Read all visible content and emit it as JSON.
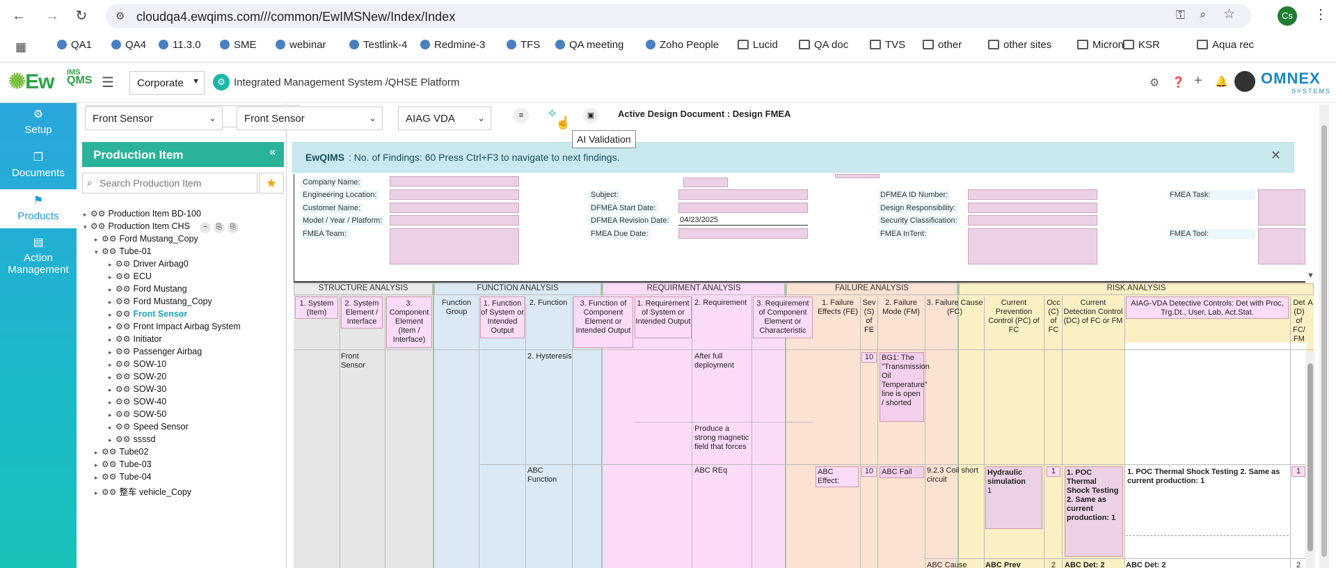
{
  "browser": {
    "url": "cloudqa4.ewqims.com///common/EwIMSNew/Index/Index",
    "profile_initials": "Cs",
    "bookmarks": [
      {
        "label": "QA1"
      },
      {
        "label": "QA4"
      },
      {
        "label": "11.3.0"
      },
      {
        "label": "SME"
      },
      {
        "label": "webinar"
      },
      {
        "label": "Testlink-4"
      },
      {
        "label": "Redmine-3"
      },
      {
        "label": "TFS"
      },
      {
        "label": "QA meeting"
      },
      {
        "label": "Zoho People"
      },
      {
        "label": "Lucid"
      },
      {
        "label": "QA doc"
      },
      {
        "label": "TVS"
      },
      {
        "label": "other"
      },
      {
        "label": "other sites"
      },
      {
        "label": "Micron"
      },
      {
        "label": "KSR"
      },
      {
        "label": "Aqua rec"
      }
    ]
  },
  "app": {
    "logo_main": "EwQIMS",
    "logo_sub_ims": "IMS",
    "logo_sub_qms": "QMS",
    "context_select": "Corporate",
    "platform_title": "Integrated Management System /QHSE Platform",
    "brand": "OMNEX",
    "brand_sub": "SYSTEMS"
  },
  "leftnav": [
    {
      "label": "Setup"
    },
    {
      "label": "Documents"
    },
    {
      "label": "Products"
    },
    {
      "label": "Action Management"
    }
  ],
  "toolbar": {
    "select1": "Front Sensor",
    "select2": "Front Sensor",
    "select3": "AIAG VDA",
    "active_doc": "Active Design Document : Design FMEA",
    "tooltip": "AI Validation"
  },
  "panel": {
    "title": "Production Item",
    "search_placeholder": "Search Production Item"
  },
  "tree": [
    {
      "label": "Production Item BD-100",
      "level": 0
    },
    {
      "label": "Production Item CHS",
      "level": 0
    },
    {
      "label": "Ford Mustang_Copy",
      "level": 1
    },
    {
      "label": "Tube-01",
      "level": 1
    },
    {
      "label": "Driver Airbag0",
      "level": 2
    },
    {
      "label": "ECU",
      "level": 2
    },
    {
      "label": "Ford Mustang",
      "level": 2
    },
    {
      "label": "Ford Mustang_Copy",
      "level": 2
    },
    {
      "label": "Front Sensor",
      "level": 2
    },
    {
      "label": "Front Impact Airbag System",
      "level": 2
    },
    {
      "label": "Initiator",
      "level": 2
    },
    {
      "label": "Passenger Airbag",
      "level": 2
    },
    {
      "label": "SOW-10",
      "level": 2
    },
    {
      "label": "SOW-20",
      "level": 2
    },
    {
      "label": "SOW-30",
      "level": 2
    },
    {
      "label": "SOW-40",
      "level": 2
    },
    {
      "label": "SOW-50",
      "level": 2
    },
    {
      "label": "Speed Sensor",
      "level": 2
    },
    {
      "label": "ssssd",
      "level": 2
    },
    {
      "label": "Tube02",
      "level": 1
    },
    {
      "label": "Tube-03",
      "level": 1
    },
    {
      "label": "Tube-04",
      "level": 1
    },
    {
      "label": "整车 vehicle_Copy",
      "level": 1
    }
  ],
  "banner": {
    "brand": "EwQIMS",
    "text": ": No. of Findings: 60 Press Ctrl+F3 to navigate to next findings."
  },
  "form": {
    "company_name": "Company Name:",
    "engineering_location": "Engineering Location:",
    "customer_name": "Customer Name:",
    "model_year": "Model / Year / Platform:",
    "fmea_team": "FMEA Team:",
    "subject": "Subject:",
    "start_date": "DFMEA Start Date:",
    "revision_date": "DFMEA Revision Date:",
    "revision_value": "04/23/2025",
    "due_date": "FMEA Due Date:",
    "id_number": "DFMEA ID Number:",
    "design_resp": "Design Responsibility:",
    "security": "Security Classification:",
    "intent": "FMEA InTent:",
    "task": "FMEA Task:",
    "tool": "FMEA Tool:"
  },
  "sections": [
    "STRUCTURE ANALYSIS",
    "FUNCTION ANALYSIS",
    "REQUIRMENT ANALYSIS",
    "FAILURE ANALYSIS",
    "RISK ANALYSIS"
  ],
  "columns": {
    "c1": "1. System (Item)",
    "c2": "2. System Element / Interface",
    "c3": "3. Component Element (Item / Interface)",
    "c4": "Function Group",
    "c5": "1. Function of System or Intended Output",
    "c6": "2. Function",
    "c7": "3. Function of Component Element or Intended Output",
    "c8": "1. Requirement of System or Intended Output",
    "c9": "2. Requirement",
    "c10": "3. Requirement of Component Element or Characteristic",
    "c11": "1. Failure Effects (FE)",
    "c12": "Sev (S) of FE",
    "c13": "2. Failure Mode (FM)",
    "c14": "3. Failure Cause (FC)",
    "c15": "Current Prevention Control (PC) of FC",
    "c16": "Occ (C) of FC",
    "c17": "Current Detection Control (DC) of FC or FM",
    "c18": "AIAG-VDA Detective Controls: Det with Proc, Trg.Dt., User, Lab, Act.Stat.",
    "c19": "Det (D) of FC/ FM",
    "c20": "A"
  },
  "rows": {
    "system_element": "Front Sensor",
    "function1": "2. Hysteresis",
    "req1": "After full deployment",
    "sev1": "10",
    "fm1": "BG1: The \"Transmission Oil Temperature\" line is open / shorted",
    "req2": "Produce a strong magnetic field that forces",
    "function2": "ABC Function",
    "req3": "ABC REq",
    "fe3": "ABC Effect:",
    "sev3": "10",
    "fm3": "ABC Fail",
    "fc3": "9.2.3 Coil short circuit",
    "pc3": "Hydraulic simulation",
    "pc3_occ": "1",
    "occ3": "1",
    "dc3": "1. POC Thermal Shock Testing 2. Same as current production: 1",
    "aiag3": "1. POC Thermal Shock Testing 2. Same as current production: 1",
    "det3": "1",
    "fc4": "ABC Cause",
    "pc4": "ABC Prev",
    "occ4": "2",
    "dc4": "ABC Det: 2",
    "aiag4": "ABC Det: 2",
    "det4": "2"
  }
}
